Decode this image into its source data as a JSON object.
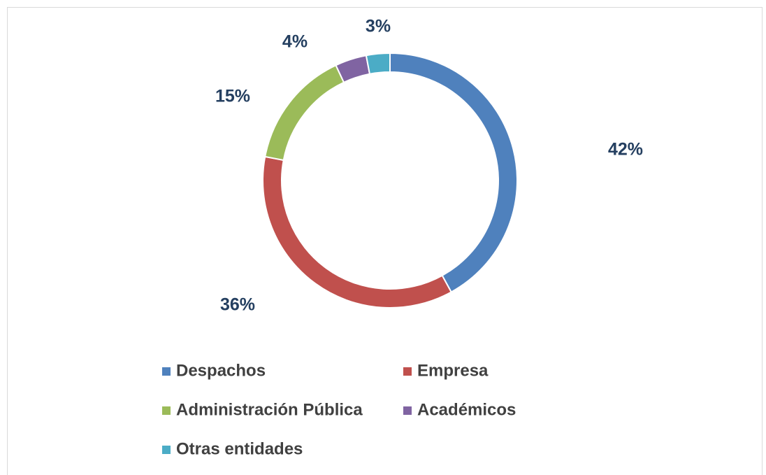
{
  "chart_data": {
    "type": "donut",
    "categories": [
      "Despachos",
      "Empresa",
      "Administración Pública",
      "Académicos",
      "Otras entidades"
    ],
    "values": [
      42,
      36,
      15,
      4,
      3
    ],
    "value_labels": [
      "42%",
      "36%",
      "15%",
      "4%",
      "3%"
    ],
    "colors": [
      "#4f81bd",
      "#c0504d",
      "#9bbb59",
      "#8064a2",
      "#4bacc6"
    ],
    "legend": "bottom"
  }
}
